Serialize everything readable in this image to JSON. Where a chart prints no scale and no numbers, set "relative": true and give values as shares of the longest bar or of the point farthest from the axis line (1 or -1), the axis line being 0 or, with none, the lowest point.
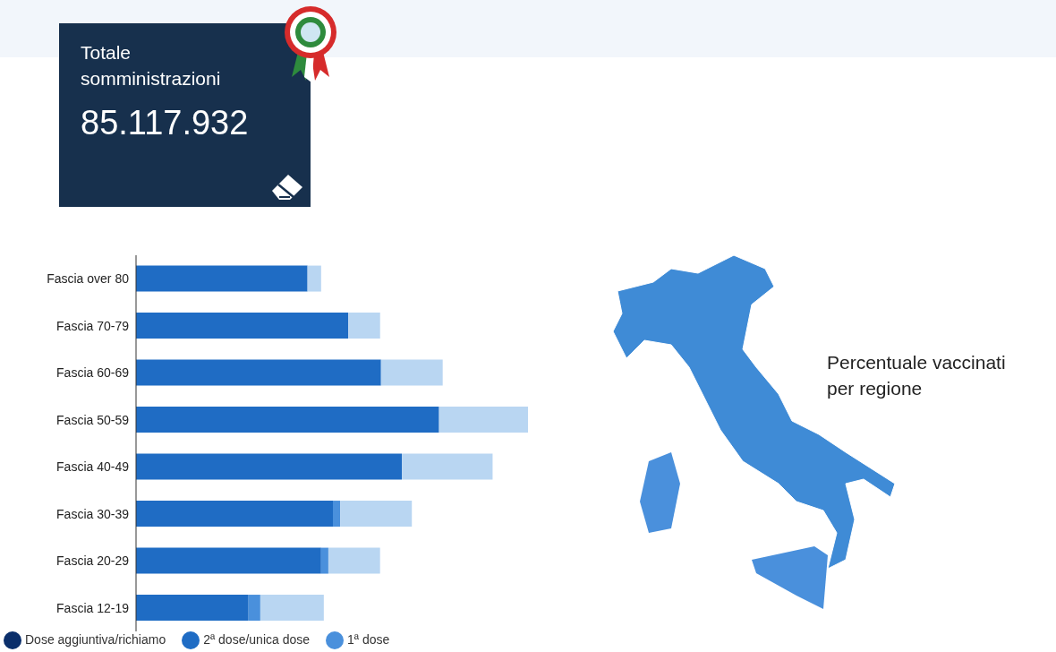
{
  "chart_data": [
    {
      "type": "other",
      "title": "Totale somministrazioni",
      "annotations": [
        "85.117.932"
      ]
    },
    {
      "type": "bar",
      "orientation": "horizontal",
      "stacked": true,
      "relative": true,
      "legend": "bottom left",
      "categories": [
        "Fascia over 80",
        "Fascia 70-79",
        "Fascia 60-69",
        "Fascia 50-59",
        "Fascia 40-49",
        "Fascia 30-39",
        "Fascia 20-29",
        "Fascia 12-19"
      ],
      "series": [
        {
          "name": "Dose aggiuntiva/richiamo",
          "color": "#0b2f6b",
          "values": [
            null,
            null,
            null,
            null,
            null,
            null,
            null,
            null
          ]
        },
        {
          "name": "2ª dose/unica dose",
          "color": "#1f6cc4",
          "values": [
            0.4375,
            0.5417,
            0.625,
            0.7731,
            0.6782,
            0.5023,
            0.4722,
            0.287
          ]
        },
        {
          "name": "1ª dose",
          "color": "#4a90dc",
          "values": [
            0,
            0,
            0,
            0,
            0,
            0.0185,
            0.0185,
            0.0301
          ]
        },
        {
          "color": "#b9d6f2",
          "values": [
            0.0347,
            0.081,
            0.1574,
            0.2269,
            0.2315,
            0.1829,
            0.1319,
            0.162
          ]
        }
      ]
    },
    {
      "type": "other",
      "title": "Percentuale vaccinati per regione"
    }
  ]
}
